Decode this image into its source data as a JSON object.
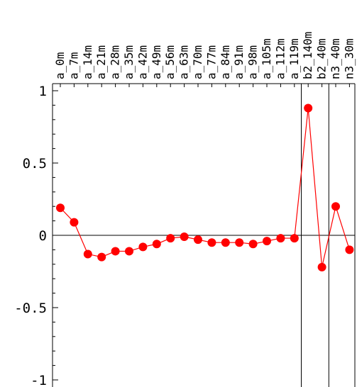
{
  "chart_data": {
    "type": "line",
    "categories": [
      "a_0m",
      "a_7m",
      "a_14m",
      "a_21m",
      "a_28m",
      "a_35m",
      "a_42m",
      "a_49m",
      "a_56m",
      "a_63m",
      "a_70m",
      "a_77m",
      "a_84m",
      "a_91m",
      "a_98m",
      "a_105m",
      "a_112m",
      "a_119m",
      "b2_140m",
      "b2_40m",
      "n3_40m",
      "n3_30m"
    ],
    "series": [
      {
        "values": [
          0.19,
          0.09,
          -0.13,
          -0.15,
          -0.11,
          -0.11,
          -0.08,
          -0.06,
          -0.02,
          -0.01,
          -0.03,
          -0.05,
          -0.05,
          -0.05,
          -0.06,
          -0.04,
          -0.02,
          -0.02,
          0.88,
          -0.22,
          0.2,
          -0.1
        ]
      }
    ],
    "yticks": [
      1,
      0.5,
      0,
      -0.5,
      -1
    ],
    "ytick_labels": [
      "1",
      "0.5",
      "0",
      "-0.5",
      "-1"
    ],
    "ylim": [
      -1.05,
      1.05
    ],
    "group_separators_after_index": [
      17,
      19
    ],
    "colors": {
      "series": "#ff0000",
      "axis": "#000000"
    },
    "grid": false
  }
}
